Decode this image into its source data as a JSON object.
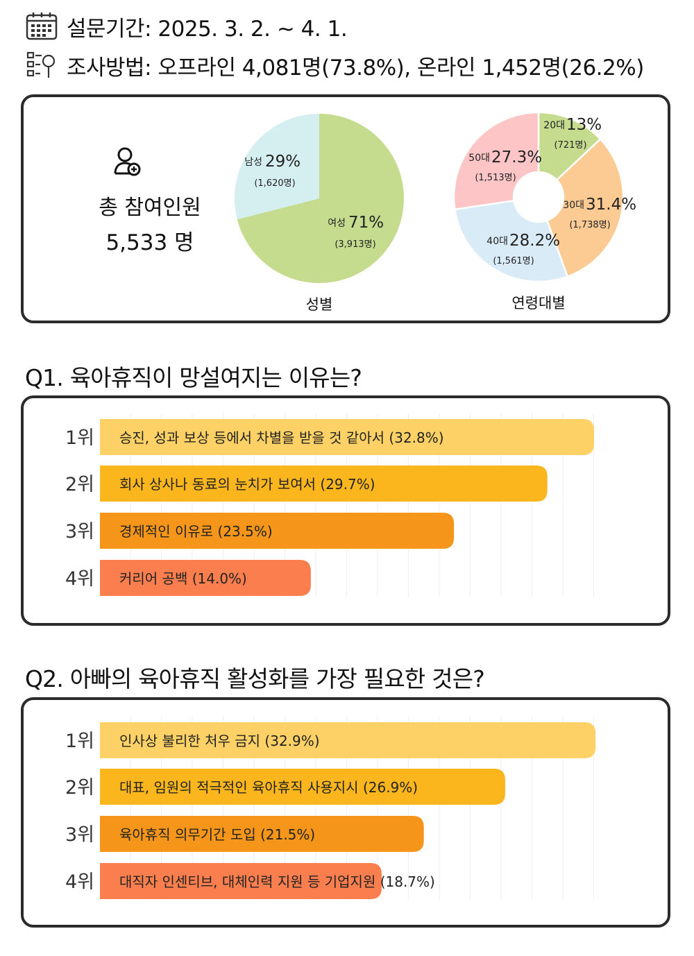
{
  "header": {
    "period": "설문기간: 2025. 3. 2. ~ 4. 1.",
    "method": "조사방법: 오프라인 4,081명(73.8%), 온라인 1,452명(26.2%)"
  },
  "summary": {
    "total_label": "총 참여인원",
    "total_value": "5,533 명"
  },
  "chart_data": [
    {
      "type": "pie",
      "title": "성별",
      "slices": [
        {
          "name": "여성",
          "percent": 71,
          "percent_label": "71%",
          "count_label": "(3,913명)",
          "color": "#c5db8e"
        },
        {
          "name": "남성",
          "percent": 29,
          "percent_label": "29%",
          "count_label": "(1,620명)",
          "color": "#d5eef0"
        }
      ]
    },
    {
      "type": "pie",
      "title": "연령대별",
      "donut": true,
      "slices": [
        {
          "name": "20대",
          "percent": 13,
          "percent_label": "13%",
          "count_label": "(721명)",
          "color": "#c5db8e"
        },
        {
          "name": "30대",
          "percent": 31.4,
          "percent_label": "31.4%",
          "count_label": "(1,738명)",
          "color": "#fccb94"
        },
        {
          "name": "40대",
          "percent": 28.2,
          "percent_label": "28.2%",
          "count_label": "(1,561명)",
          "color": "#d9ebf7"
        },
        {
          "name": "50대",
          "percent": 27.3,
          "percent_label": "27.3%",
          "count_label": "(1,513명)",
          "color": "#fdc5c5"
        }
      ]
    },
    {
      "type": "bar",
      "orientation": "horizontal",
      "title": "Q1. 육아휴직이 망설여지는 이유는?",
      "rank_labels": [
        "1위",
        "2위",
        "3위",
        "4위"
      ],
      "categories": [
        "승진, 성과 보상 등에서 차별을 받을 것 같아서 (32.8%)",
        "회사 상사나 동료의 눈치가 보여서 (29.7%)",
        "경제적인 이유로 (23.5%)",
        "커리어 공백 (14.0%)"
      ],
      "values": [
        32.8,
        29.7,
        23.5,
        14.0
      ],
      "colors": [
        "#fdd166",
        "#fbb61e",
        "#f5961a",
        "#fb7f4e"
      ]
    },
    {
      "type": "bar",
      "orientation": "horizontal",
      "title": "Q2. 아빠의 육아휴직 활성화를 가장 필요한 것은?",
      "rank_labels": [
        "1위",
        "2위",
        "3위",
        "4위"
      ],
      "categories": [
        "인사상 불리한 처우 금지 (32.9%)",
        "대표, 임원의 적극적인 육아휴직 사용지시 (26.9%)",
        "육아휴직 의무기간 도입 (21.5%)",
        "대직자 인센티브, 대체인력 지원 등 기업지원 (18.7%)"
      ],
      "values": [
        32.9,
        26.9,
        21.5,
        18.7
      ],
      "colors": [
        "#fdd166",
        "#fbb61e",
        "#f5961a",
        "#fb7f4e"
      ]
    }
  ]
}
